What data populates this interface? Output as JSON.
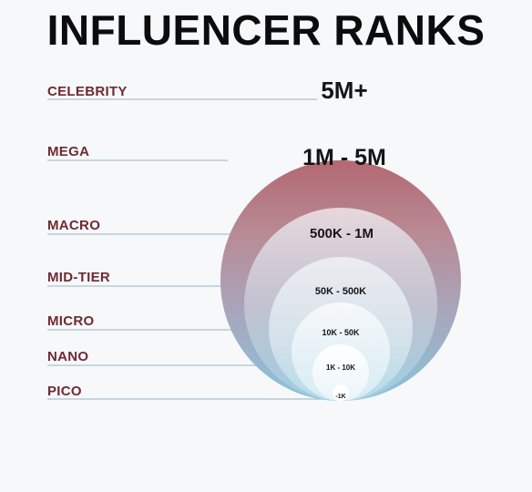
{
  "title": "INFLUENCER RANKS",
  "ranks": [
    {
      "label": "CELEBRITY",
      "range": "5M+"
    },
    {
      "label": "MEGA",
      "range": "1M - 5M"
    },
    {
      "label": "MACRO",
      "range": "500K - 1M"
    },
    {
      "label": "MID-TIER",
      "range": "50K - 500K"
    },
    {
      "label": "MICRO",
      "range": "10K - 50K"
    },
    {
      "label": "NANO",
      "range": "1K - 10K"
    },
    {
      "label": "PICO",
      "range": "-1K"
    }
  ],
  "colors": {
    "outer_top": "#b36d76",
    "outer_mid": "#b7a3b3",
    "outer_bottom": "#8ec3da",
    "label_text": "#6e2a33",
    "leader_line": "#7a9eb5",
    "title_text": "#0c0c0c"
  }
}
